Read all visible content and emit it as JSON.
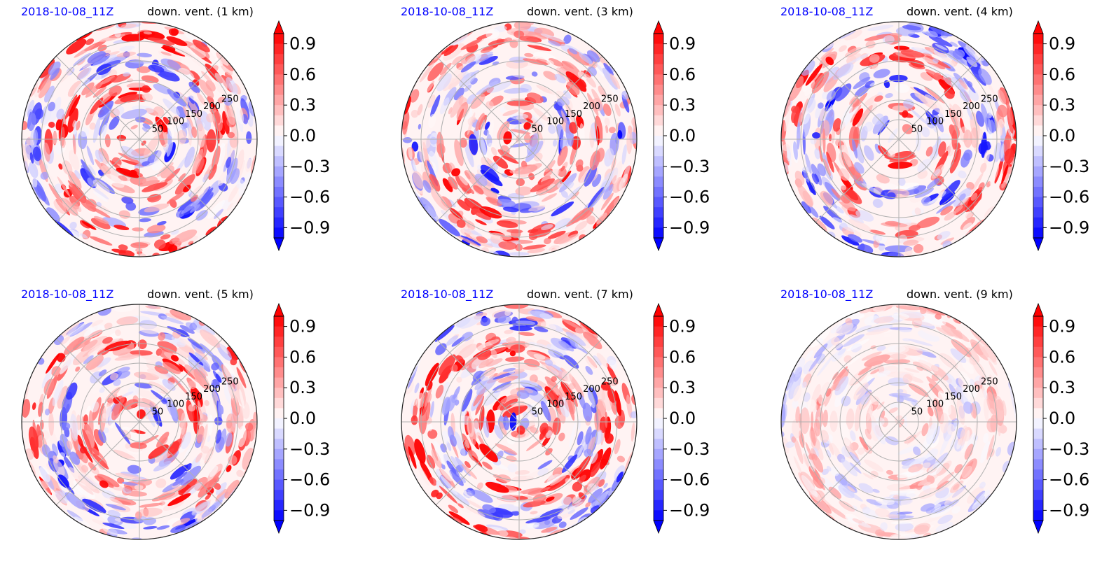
{
  "chart_data": [
    {
      "type": "heatmap",
      "projection": "polar",
      "title_left": "2018-10-08_11Z",
      "title_right": "down. vent. (1 km)",
      "radial_ticks": [
        "50",
        "100",
        "150",
        "200",
        "250"
      ],
      "grid": true,
      "colorbar": {
        "ticks": [
          "0.9",
          "0.6",
          "0.3",
          "0.0",
          "−0.3",
          "−0.6",
          "−0.9"
        ],
        "range": [
          -1,
          1
        ],
        "cmap": "bwr",
        "extend": "both"
      },
      "dominant": "positive"
    },
    {
      "type": "heatmap",
      "projection": "polar",
      "title_left": "2018-10-08_11Z",
      "title_right": "down. vent. (3 km)",
      "radial_ticks": [
        "50",
        "100",
        "150",
        "200",
        "250"
      ],
      "grid": true,
      "colorbar": {
        "ticks": [
          "0.9",
          "0.6",
          "0.3",
          "0.0",
          "−0.3",
          "−0.6",
          "−0.9"
        ],
        "range": [
          -1,
          1
        ],
        "cmap": "bwr",
        "extend": "both"
      },
      "dominant": "positive"
    },
    {
      "type": "heatmap",
      "projection": "polar",
      "title_left": "2018-10-08_11Z",
      "title_right": "down. vent. (4 km)",
      "radial_ticks": [
        "50",
        "100",
        "150",
        "200",
        "250"
      ],
      "grid": true,
      "colorbar": {
        "ticks": [
          "0.9",
          "0.6",
          "0.3",
          "0.0",
          "−0.3",
          "−0.6",
          "−0.9"
        ],
        "range": [
          -1,
          1
        ],
        "cmap": "bwr",
        "extend": "both"
      },
      "dominant": "mixed"
    },
    {
      "type": "heatmap",
      "projection": "polar",
      "title_left": "2018-10-08_11Z",
      "title_right": "down. vent. (5 km)",
      "radial_ticks": [
        "50",
        "100",
        "150",
        "200",
        "250"
      ],
      "grid": true,
      "colorbar": {
        "ticks": [
          "0.9",
          "0.6",
          "0.3",
          "0.0",
          "−0.3",
          "−0.6",
          "−0.9"
        ],
        "range": [
          -1,
          1
        ],
        "cmap": "bwr",
        "extend": "both"
      },
      "dominant": "mixed"
    },
    {
      "type": "heatmap",
      "projection": "polar",
      "title_left": "2018-10-08_11Z",
      "title_right": "down. vent. (7 km)",
      "radial_ticks": [
        "50",
        "100",
        "150",
        "200",
        "250"
      ],
      "grid": true,
      "colorbar": {
        "ticks": [
          "0.9",
          "0.6",
          "0.3",
          "0.0",
          "−0.3",
          "−0.6",
          "−0.9"
        ],
        "range": [
          -1,
          1
        ],
        "cmap": "bwr",
        "extend": "both"
      },
      "dominant": "positive"
    },
    {
      "type": "heatmap",
      "projection": "polar",
      "title_left": "2018-10-08_11Z",
      "title_right": "down. vent. (9 km)",
      "radial_ticks": [
        "50",
        "100",
        "150",
        "200",
        "250"
      ],
      "grid": true,
      "colorbar": {
        "ticks": [
          "0.9",
          "0.6",
          "0.3",
          "0.0",
          "−0.3",
          "−0.6",
          "−0.9"
        ],
        "range": [
          -1,
          1
        ],
        "cmap": "bwr",
        "extend": "both"
      },
      "dominant": "weak"
    }
  ],
  "colors": {
    "positive": "#ff0000",
    "negative": "#0000ff",
    "neutral": "#ffffff",
    "grid": "#b0b0b0",
    "title_time": "#0000ff"
  }
}
